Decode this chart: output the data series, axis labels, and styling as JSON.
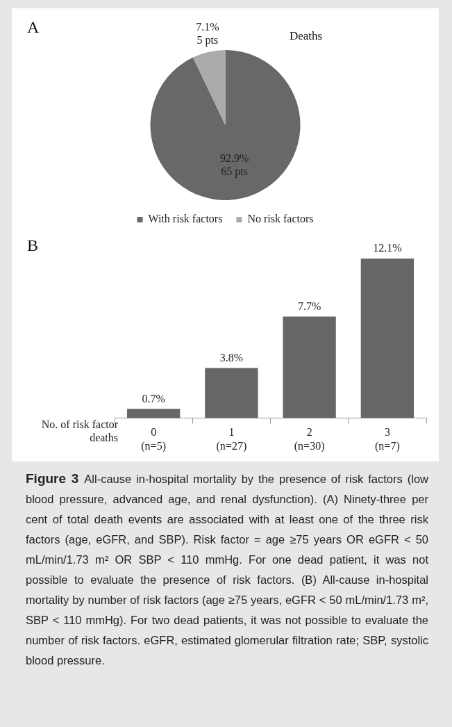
{
  "chart_data": [
    {
      "type": "pie",
      "title": "Deaths",
      "categories": [
        "With risk factors",
        "No risk factors"
      ],
      "values": [
        92.9,
        7.1
      ],
      "colors": [
        "#686868",
        "#aaaaaa"
      ],
      "value_labels": [
        "92.9%\n65 pts",
        "7.1%\n5 pts"
      ],
      "legend": "bottom",
      "annotations": [
        "A"
      ]
    },
    {
      "type": "bar",
      "categories": [
        "0\n(n=5)",
        "1\n(n=27)",
        "2\n(n=30)",
        "3\n(n=7)"
      ],
      "values": [
        0.7,
        3.8,
        7.7,
        12.1
      ],
      "color": "#666666",
      "value_labels": [
        "0.7%",
        "3.8%",
        "7.7%",
        "12.1%"
      ],
      "xlabel": "No. of risk factor deaths",
      "annotations": [
        "B",
        "Figure 3",
        "All-cause in-hospital mortality by the presence of risk factors (low blood pressure, advanced age, and renal dysfunction). (A) Ninety-three per cent of total death events are associated with at least one of the three risk factors (age, eGFR, and SBP). Risk factor = age ≥75 years OR eGFR < 50 mL/min/1.73 m² OR SBP < 110 mmHg. For one dead patient, it was not possible to evaluate the presence of risk factors. (B) All-cause in-hospital mortality by number of risk factors (age ≥75 years, eGFR < 50 mL/min/1.73 m², SBP < 110 mmHg). For two dead patients, it was not possible to evaluate the number of risk factors. eGFR, estimated glomerular filtration rate; SBP, systolic blood pressure."
      ]
    }
  ]
}
